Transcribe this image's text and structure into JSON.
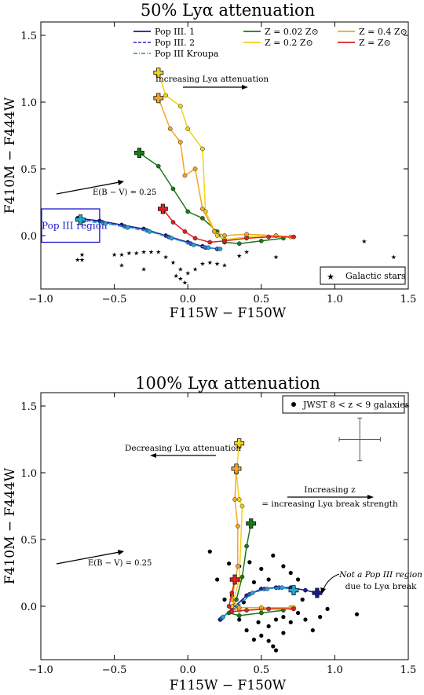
{
  "chart_data": [
    {
      "type": "line",
      "title": "50% Lyα attenuation",
      "xlabel": "F115W − F150W",
      "ylabel": "F410M − F444W",
      "xlim": [
        -1.0,
        1.5
      ],
      "ylim": [
        -0.4,
        1.6
      ],
      "xticks": [
        "−1.0",
        "−0.5",
        "0.0",
        "0.5",
        "1.0",
        "1.5"
      ],
      "yticks": [
        "0.0",
        "0.5",
        "1.0",
        "1.5"
      ],
      "legend": {
        "placement": "top",
        "entries": [
          {
            "label": "Pop III. 1",
            "color": "#1a1a8c",
            "style": "solid"
          },
          {
            "label": "Pop III. 2",
            "color": "#4444cc",
            "style": "dashed"
          },
          {
            "label": "Pop III Kroupa",
            "color": "#22aacc",
            "style": "dashdot"
          },
          {
            "label": "Z = 0.02 Z⊙",
            "color": "#1a7a1a",
            "style": "solid"
          },
          {
            "label": "Z = 0.2 Z⊙",
            "color": "#f2d21b",
            "style": "solid"
          },
          {
            "label": "Z = 0.4 Z⊙",
            "color": "#f5a623",
            "style": "solid"
          },
          {
            "label": "Z = Z⊙",
            "color": "#e02020",
            "style": "solid"
          }
        ]
      },
      "legend2": {
        "label": "Galactic stars",
        "placement": "lower-right"
      },
      "box_label": "Pop III region",
      "box": {
        "x": [
          -1.0,
          -0.6
        ],
        "y": [
          -0.05,
          0.2
        ]
      },
      "arrow_label": "Increasing Lyα attenuation",
      "ebv_label": "E(B − V) = 0.25",
      "series": [
        {
          "name": "Pop III. 1",
          "color": "#1a1a8c",
          "points": [
            [
              -0.75,
              0.13
            ],
            [
              -0.6,
              0.11
            ],
            [
              -0.45,
              0.08
            ],
            [
              -0.3,
              0.05
            ],
            [
              -0.15,
              0.0
            ],
            [
              0.0,
              -0.05
            ],
            [
              0.1,
              -0.08
            ],
            [
              0.2,
              -0.1
            ]
          ]
        },
        {
          "name": "Pop III. 2",
          "color": "#4444cc",
          "points": [
            [
              -0.73,
              0.12
            ],
            [
              -0.58,
              0.1
            ],
            [
              -0.43,
              0.07
            ],
            [
              -0.28,
              0.04
            ],
            [
              -0.13,
              -0.01
            ],
            [
              0.02,
              -0.06
            ],
            [
              0.12,
              -0.09
            ],
            [
              0.2,
              -0.1
            ]
          ]
        },
        {
          "name": "Pop III Kroupa",
          "color": "#22aacc",
          "points": [
            [
              -0.71,
              0.11
            ],
            [
              -0.56,
              0.09
            ],
            [
              -0.41,
              0.06
            ],
            [
              -0.26,
              0.03
            ],
            [
              -0.11,
              -0.02
            ],
            [
              0.04,
              -0.07
            ],
            [
              0.14,
              -0.09
            ],
            [
              0.22,
              -0.1
            ]
          ]
        },
        {
          "name": "Z = 0.02 Z⊙",
          "color": "#1a7a1a",
          "points": [
            [
              -0.33,
              0.62
            ],
            [
              -0.2,
              0.52
            ],
            [
              -0.1,
              0.35
            ],
            [
              0.0,
              0.18
            ],
            [
              0.1,
              0.13
            ],
            [
              0.2,
              0.03
            ],
            [
              0.25,
              -0.05
            ],
            [
              0.35,
              -0.06
            ],
            [
              0.5,
              -0.04
            ],
            [
              0.65,
              -0.02
            ]
          ]
        },
        {
          "name": "Z = 0.2 Z⊙",
          "color": "#f2d21b",
          "points": [
            [
              -0.2,
              1.22
            ],
            [
              -0.15,
              1.05
            ],
            [
              -0.05,
              0.97
            ],
            [
              0.0,
              0.8
            ],
            [
              0.1,
              0.65
            ],
            [
              0.12,
              0.18
            ],
            [
              0.2,
              0.0
            ],
            [
              0.25,
              -0.03
            ],
            [
              0.4,
              -0.01
            ],
            [
              0.6,
              0.0
            ],
            [
              0.7,
              -0.01
            ]
          ]
        },
        {
          "name": "Z = 0.4 Z⊙",
          "color": "#f5a623",
          "points": [
            [
              -0.2,
              1.03
            ],
            [
              -0.12,
              0.8
            ],
            [
              -0.05,
              0.7
            ],
            [
              -0.02,
              0.45
            ],
            [
              0.05,
              0.5
            ],
            [
              0.1,
              0.2
            ],
            [
              0.18,
              0.03
            ],
            [
              0.25,
              0.0
            ],
            [
              0.4,
              0.01
            ],
            [
              0.6,
              0.0
            ],
            [
              0.72,
              -0.01
            ]
          ]
        },
        {
          "name": "Z = Z⊙",
          "color": "#e02020",
          "points": [
            [
              -0.17,
              0.2
            ],
            [
              -0.1,
              0.1
            ],
            [
              -0.02,
              0.03
            ],
            [
              0.05,
              -0.02
            ],
            [
              0.15,
              -0.05
            ],
            [
              0.25,
              -0.04
            ],
            [
              0.4,
              -0.02
            ],
            [
              0.55,
              -0.01
            ],
            [
              0.72,
              -0.01
            ]
          ]
        }
      ],
      "start_markers": [
        {
          "x": -0.2,
          "y": 1.22,
          "color": "#f2d21b"
        },
        {
          "x": -0.2,
          "y": 1.03,
          "color": "#f5a623"
        },
        {
          "x": -0.33,
          "y": 0.62,
          "color": "#1a7a1a"
        },
        {
          "x": -0.17,
          "y": 0.2,
          "color": "#e02020"
        },
        {
          "x": -0.73,
          "y": 0.12,
          "color": "#22aacc"
        }
      ],
      "stars": [
        [
          -0.72,
          -0.14
        ],
        [
          -0.72,
          -0.18
        ],
        [
          -0.75,
          -0.18
        ],
        [
          -0.5,
          -0.14
        ],
        [
          -0.45,
          -0.14
        ],
        [
          -0.4,
          -0.13
        ],
        [
          -0.35,
          -0.13
        ],
        [
          -0.3,
          -0.12
        ],
        [
          -0.25,
          -0.12
        ],
        [
          -0.2,
          -0.12
        ],
        [
          -0.15,
          -0.16
        ],
        [
          -0.1,
          -0.2
        ],
        [
          -0.05,
          -0.25
        ],
        [
          0.0,
          -0.28
        ],
        [
          0.05,
          -0.25
        ],
        [
          0.1,
          -0.21
        ],
        [
          0.15,
          -0.2
        ],
        [
          0.2,
          -0.21
        ],
        [
          0.25,
          -0.22
        ],
        [
          -0.02,
          -0.35
        ],
        [
          -0.05,
          -0.32
        ],
        [
          -0.08,
          -0.3
        ],
        [
          -0.45,
          -0.22
        ],
        [
          -0.3,
          -0.25
        ],
        [
          0.35,
          -0.15
        ],
        [
          0.4,
          -0.12
        ],
        [
          0.6,
          -0.16
        ],
        [
          1.2,
          -0.04
        ],
        [
          1.4,
          -0.16
        ]
      ]
    },
    {
      "type": "line",
      "title": "100% Lyα attenuation",
      "xlabel": "F115W − F150W",
      "ylabel": "F410M − F444W",
      "xlim": [
        -1.0,
        1.5
      ],
      "ylim": [
        -0.4,
        1.6
      ],
      "xticks": [
        "−1.0",
        "−0.5",
        "0.0",
        "0.5",
        "1.0",
        "1.5"
      ],
      "yticks": [
        "0.0",
        "0.5",
        "1.0",
        "1.5"
      ],
      "legend": {
        "label": "JWST 8 < z < 9 galaxies",
        "placement": "top-right"
      },
      "arrow_left_label": "Decreasing Lyα attenuation",
      "arrow_right_label_1": "Increasing z",
      "arrow_right_label_2": "= increasing Lyα break strength",
      "note_label_1": "Not a Pop III region",
      "note_label_2": "due to Lyα break",
      "ebv_label": "E(B − V) = 0.25",
      "error_bar": {
        "x": 1.17,
        "y": 1.25,
        "xerr": 0.14,
        "yerr": 0.16
      },
      "series": [
        {
          "name": "Pop III. 1",
          "color": "#1a1a8c",
          "points": [
            [
              0.22,
              -0.1
            ],
            [
              0.3,
              -0.02
            ],
            [
              0.4,
              0.08
            ],
            [
              0.5,
              0.13
            ],
            [
              0.6,
              0.14
            ],
            [
              0.7,
              0.14
            ],
            [
              0.8,
              0.12
            ],
            [
              0.88,
              0.1
            ]
          ]
        },
        {
          "name": "Pop III. 2",
          "color": "#4444cc",
          "points": [
            [
              0.23,
              -0.09
            ],
            [
              0.32,
              -0.01
            ],
            [
              0.42,
              0.09
            ],
            [
              0.52,
              0.13
            ],
            [
              0.62,
              0.14
            ],
            [
              0.72,
              0.13
            ]
          ]
        },
        {
          "name": "Pop III Kroupa",
          "color": "#22aacc",
          "points": [
            [
              0.24,
              -0.08
            ],
            [
              0.34,
              0.0
            ],
            [
              0.44,
              0.1
            ],
            [
              0.54,
              0.13
            ],
            [
              0.64,
              0.14
            ],
            [
              0.72,
              0.12
            ]
          ]
        },
        {
          "name": "Z = 0.02 Z⊙",
          "color": "#1a7a1a",
          "points": [
            [
              0.43,
              0.62
            ],
            [
              0.4,
              0.45
            ],
            [
              0.37,
              0.22
            ],
            [
              0.33,
              0.05
            ],
            [
              0.28,
              -0.05
            ],
            [
              0.35,
              -0.07
            ],
            [
              0.5,
              -0.05
            ],
            [
              0.65,
              -0.03
            ]
          ]
        },
        {
          "name": "Z = 0.2 Z⊙",
          "color": "#f2d21b",
          "points": [
            [
              0.35,
              1.22
            ],
            [
              0.33,
              1.0
            ],
            [
              0.35,
              0.8
            ],
            [
              0.37,
              0.75
            ],
            [
              0.35,
              0.2
            ],
            [
              0.3,
              0.0
            ],
            [
              0.35,
              -0.03
            ],
            [
              0.5,
              -0.02
            ],
            [
              0.7,
              -0.01
            ]
          ]
        },
        {
          "name": "Z = 0.4 Z⊙",
          "color": "#f5a623",
          "points": [
            [
              0.33,
              1.03
            ],
            [
              0.32,
              0.8
            ],
            [
              0.34,
              0.6
            ],
            [
              0.34,
              0.3
            ],
            [
              0.3,
              0.05
            ],
            [
              0.35,
              -0.01
            ],
            [
              0.5,
              -0.01
            ],
            [
              0.72,
              -0.01
            ]
          ]
        },
        {
          "name": "Z = Z⊙",
          "color": "#e02020",
          "points": [
            [
              0.32,
              0.2
            ],
            [
              0.3,
              0.1
            ],
            [
              0.28,
              0.0
            ],
            [
              0.3,
              -0.04
            ],
            [
              0.4,
              -0.03
            ],
            [
              0.55,
              -0.02
            ],
            [
              0.72,
              -0.02
            ]
          ]
        }
      ],
      "start_markers": [
        {
          "x": 0.35,
          "y": 1.22,
          "color": "#f2d21b"
        },
        {
          "x": 0.33,
          "y": 1.03,
          "color": "#f5a623"
        },
        {
          "x": 0.43,
          "y": 0.62,
          "color": "#1a7a1a"
        },
        {
          "x": 0.32,
          "y": 0.2,
          "color": "#e02020"
        },
        {
          "x": 0.88,
          "y": 0.1,
          "color": "#1a1a8c"
        },
        {
          "x": 0.72,
          "y": 0.12,
          "color": "#22aacc"
        }
      ],
      "galaxies": [
        [
          0.15,
          0.41
        ],
        [
          0.2,
          0.2
        ],
        [
          0.28,
          0.32
        ],
        [
          0.35,
          0.3
        ],
        [
          0.42,
          0.33
        ],
        [
          0.5,
          0.28
        ],
        [
          0.58,
          0.38
        ],
        [
          0.65,
          0.3
        ],
        [
          0.7,
          0.25
        ],
        [
          0.75,
          0.2
        ],
        [
          0.55,
          0.2
        ],
        [
          0.45,
          0.18
        ],
        [
          0.25,
          0.05
        ],
        [
          0.38,
          0.03
        ],
        [
          0.48,
          -0.12
        ],
        [
          0.55,
          -0.15
        ],
        [
          0.6,
          -0.1
        ],
        [
          0.65,
          -0.08
        ],
        [
          0.7,
          -0.12
        ],
        [
          0.75,
          -0.05
        ],
        [
          0.8,
          -0.1
        ],
        [
          0.85,
          -0.18
        ],
        [
          0.9,
          -0.08
        ],
        [
          0.95,
          -0.02
        ],
        [
          1.15,
          -0.06
        ],
        [
          0.5,
          -0.22
        ],
        [
          0.58,
          -0.3
        ],
        [
          0.6,
          -0.33
        ],
        [
          0.55,
          -0.26
        ],
        [
          0.65,
          -0.2
        ],
        [
          0.45,
          -0.25
        ],
        [
          0.4,
          -0.18
        ],
        [
          0.35,
          -0.1
        ],
        [
          0.72,
          -0.02
        ],
        [
          0.78,
          0.05
        ],
        [
          0.3,
          0.08
        ]
      ]
    }
  ]
}
